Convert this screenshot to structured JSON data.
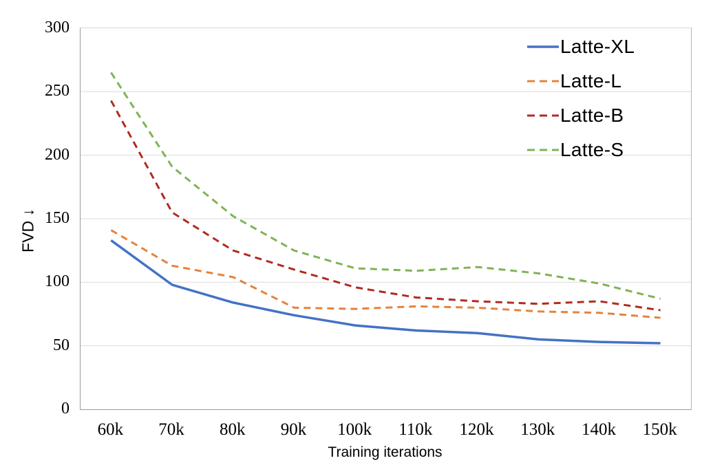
{
  "chart_data": {
    "type": "line",
    "title": "",
    "xlabel": "Training iterations",
    "ylabel": "FVD ↓",
    "categories": [
      "60k",
      "70k",
      "80k",
      "90k",
      "100k",
      "110k",
      "120k",
      "130k",
      "140k",
      "150k"
    ],
    "ylim": [
      0,
      300
    ],
    "yticks": [
      0,
      50,
      100,
      150,
      200,
      250,
      300
    ],
    "grid": "horizontal-only",
    "legend_position": "top-right-inside",
    "series": [
      {
        "name": "Latte-XL",
        "color": "#4472C4",
        "style": "solid",
        "values": [
          133,
          98,
          84,
          74,
          66,
          62,
          60,
          55,
          53,
          52
        ]
      },
      {
        "name": "Latte-L",
        "color": "#E5823C",
        "style": "dashed",
        "values": [
          141,
          113,
          104,
          80,
          79,
          81,
          80,
          77,
          76,
          72
        ]
      },
      {
        "name": "Latte-B",
        "color": "#B02B20",
        "style": "dashed",
        "values": [
          243,
          155,
          125,
          110,
          96,
          88,
          85,
          83,
          85,
          78
        ]
      },
      {
        "name": "Latte-S",
        "color": "#7FB355",
        "style": "dashed",
        "values": [
          265,
          191,
          152,
          125,
          111,
          109,
          112,
          107,
          99,
          87
        ]
      }
    ],
    "colors": {
      "gridline": "#d9d9d9",
      "axis": "#9a9a9a",
      "tick_text": "#000000"
    }
  }
}
